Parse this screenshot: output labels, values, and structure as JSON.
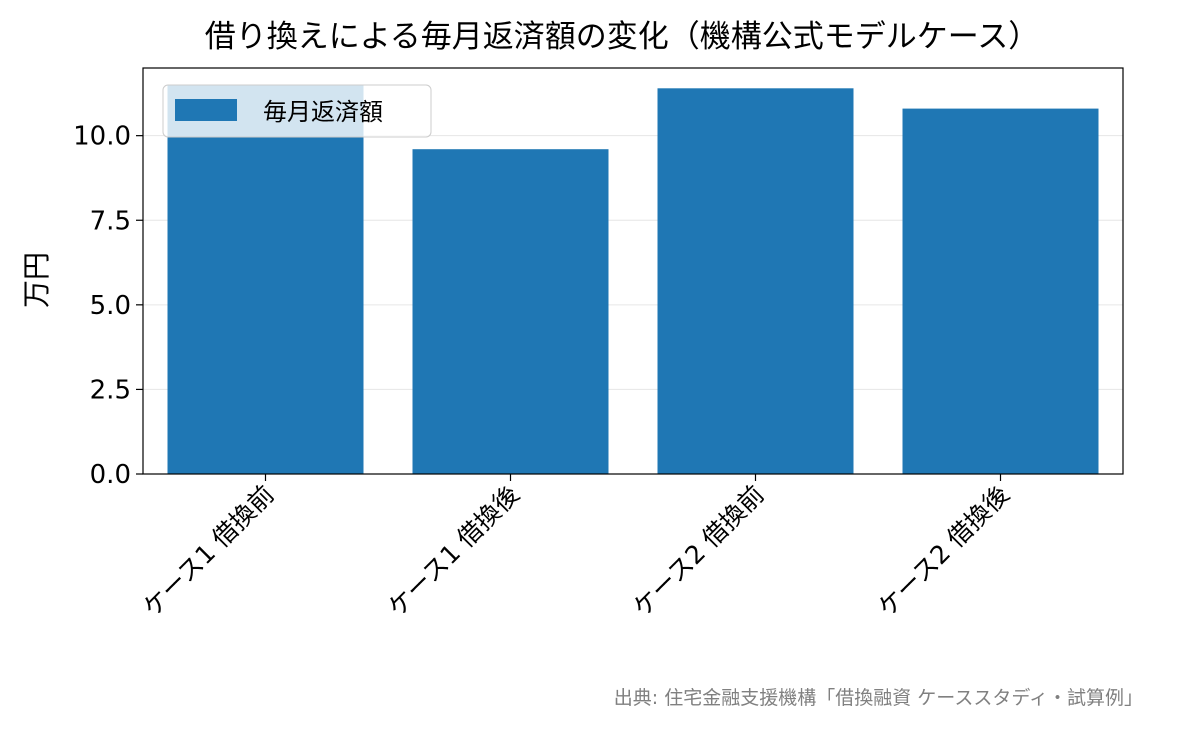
{
  "title": "借り換えによる毎月返済額の変化（機構公式モデルケース）",
  "source_note": "出典: 住宅金融支援機構「借換融資 ケーススタディ・試算例」",
  "colors": {
    "bar": "#1f77b4",
    "axis": "#000000",
    "grid": "#e6e6e6",
    "source_text": "#808080"
  },
  "chart_data": {
    "type": "bar",
    "title": "借り換えによる毎月返済額の変化（機構公式モデルケース）",
    "xlabel": "",
    "ylabel": "万円",
    "categories": [
      "ケース1 借換前",
      "ケース1 借換後",
      "ケース2 借換前",
      "ケース2 借換後"
    ],
    "series": [
      {
        "name": "毎月返済額",
        "values": [
          11.5,
          9.6,
          11.4,
          10.8
        ]
      }
    ],
    "ylim": [
      0,
      12.0
    ],
    "yticks": [
      0.0,
      2.5,
      5.0,
      7.5,
      10.0
    ],
    "ytick_labels": [
      "0.0",
      "2.5",
      "5.0",
      "7.5",
      "10.0"
    ],
    "grid": "y",
    "legend_position": "upper-left"
  }
}
